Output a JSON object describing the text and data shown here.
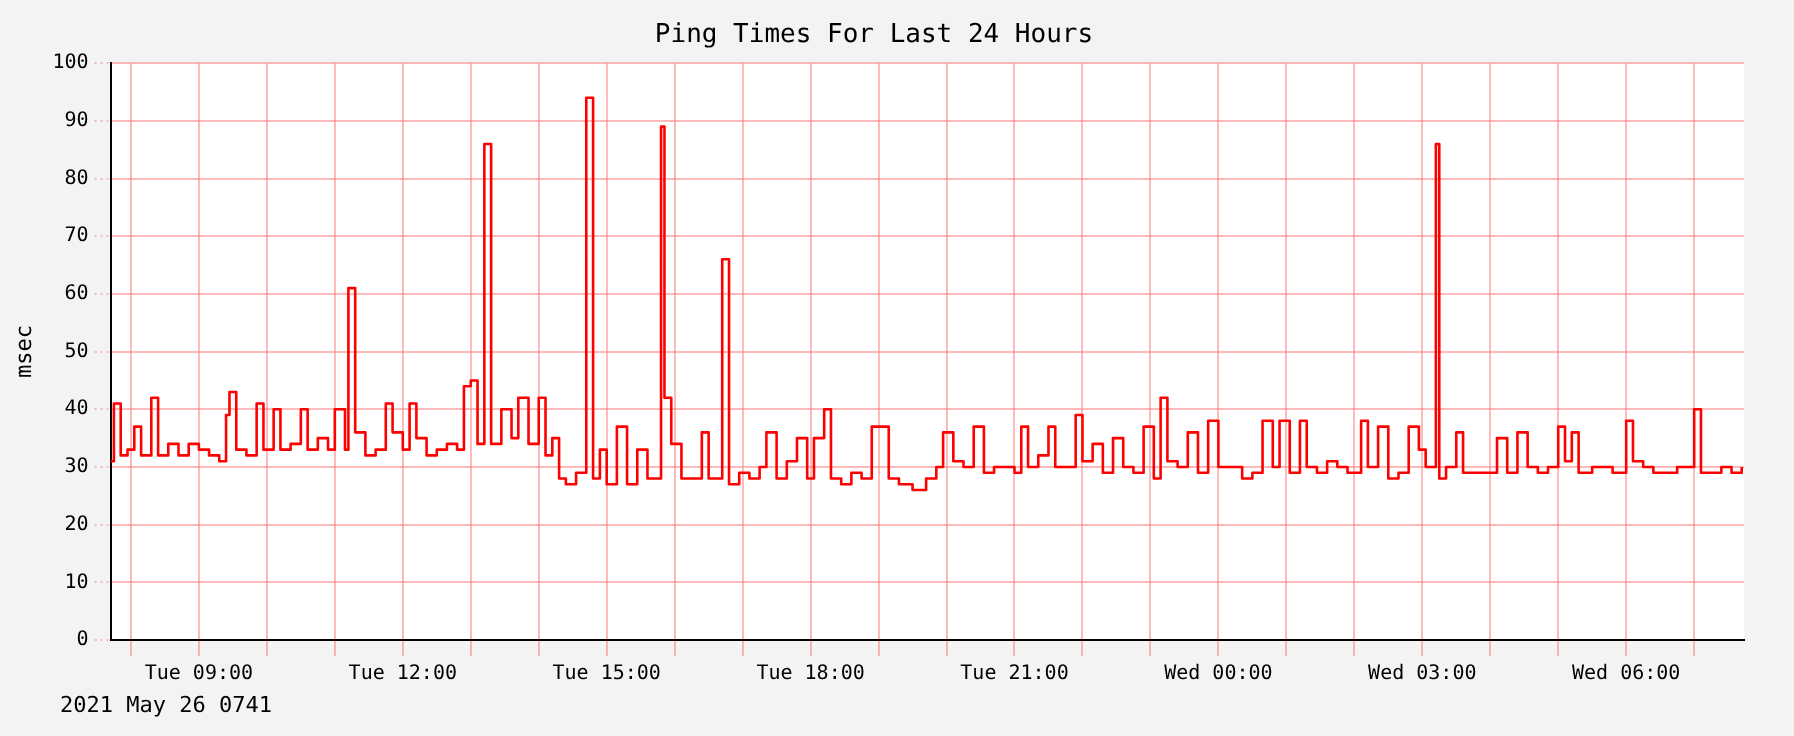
{
  "chart_data": {
    "type": "step",
    "title": "Ping Times For Last 24 Hours",
    "ylabel": "msec",
    "annotations": [
      "2021 May 26 0741"
    ],
    "xlim": [
      "2021-05-25T07:42",
      "2021-05-26T07:44"
    ],
    "xticks": [
      {
        "value": "2021-05-25T08:00",
        "label": null
      },
      {
        "value": "2021-05-25T09:00",
        "label": "Tue 09:00"
      },
      {
        "value": "2021-05-25T10:00",
        "label": null
      },
      {
        "value": "2021-05-25T11:00",
        "label": null
      },
      {
        "value": "2021-05-25T12:00",
        "label": "Tue 12:00"
      },
      {
        "value": "2021-05-25T13:00",
        "label": null
      },
      {
        "value": "2021-05-25T14:00",
        "label": null
      },
      {
        "value": "2021-05-25T15:00",
        "label": "Tue 15:00"
      },
      {
        "value": "2021-05-25T16:00",
        "label": null
      },
      {
        "value": "2021-05-25T17:00",
        "label": null
      },
      {
        "value": "2021-05-25T18:00",
        "label": "Tue 18:00"
      },
      {
        "value": "2021-05-25T19:00",
        "label": null
      },
      {
        "value": "2021-05-25T20:00",
        "label": null
      },
      {
        "value": "2021-05-25T21:00",
        "label": "Tue 21:00"
      },
      {
        "value": "2021-05-25T22:00",
        "label": null
      },
      {
        "value": "2021-05-25T23:00",
        "label": null
      },
      {
        "value": "2021-05-26T00:00",
        "label": "Wed 00:00"
      },
      {
        "value": "2021-05-26T01:00",
        "label": null
      },
      {
        "value": "2021-05-26T02:00",
        "label": null
      },
      {
        "value": "2021-05-26T03:00",
        "label": "Wed 03:00"
      },
      {
        "value": "2021-05-26T04:00",
        "label": null
      },
      {
        "value": "2021-05-26T05:00",
        "label": null
      },
      {
        "value": "2021-05-26T06:00",
        "label": "Wed 06:00"
      },
      {
        "value": "2021-05-26T07:00",
        "label": null
      }
    ],
    "ylim": [
      0,
      100
    ],
    "yticks": [
      0,
      10,
      20,
      30,
      40,
      50,
      60,
      70,
      80,
      90,
      100
    ],
    "grid": true,
    "marker": "none",
    "series": [
      {
        "color": "#ff0000",
        "x": [
          "2021-05-25T07:42",
          "2021-05-25T07:45",
          "2021-05-25T07:51",
          "2021-05-25T07:57",
          "2021-05-25T08:03",
          "2021-05-25T08:09",
          "2021-05-25T08:18",
          "2021-05-25T08:24",
          "2021-05-25T08:33",
          "2021-05-25T08:42",
          "2021-05-25T08:51",
          "2021-05-25T09:00",
          "2021-05-25T09:09",
          "2021-05-25T09:18",
          "2021-05-25T09:24",
          "2021-05-25T09:27",
          "2021-05-25T09:33",
          "2021-05-25T09:42",
          "2021-05-25T09:51",
          "2021-05-25T09:57",
          "2021-05-25T10:06",
          "2021-05-25T10:12",
          "2021-05-25T10:21",
          "2021-05-25T10:30",
          "2021-05-25T10:36",
          "2021-05-25T10:45",
          "2021-05-25T10:54",
          "2021-05-25T11:00",
          "2021-05-25T11:09",
          "2021-05-25T11:12",
          "2021-05-25T11:18",
          "2021-05-25T11:27",
          "2021-05-25T11:36",
          "2021-05-25T11:45",
          "2021-05-25T11:51",
          "2021-05-25T12:00",
          "2021-05-25T12:06",
          "2021-05-25T12:12",
          "2021-05-25T12:21",
          "2021-05-25T12:30",
          "2021-05-25T12:39",
          "2021-05-25T12:48",
          "2021-05-25T12:54",
          "2021-05-25T13:00",
          "2021-05-25T13:06",
          "2021-05-25T13:12",
          "2021-05-25T13:18",
          "2021-05-25T13:27",
          "2021-05-25T13:36",
          "2021-05-25T13:42",
          "2021-05-25T13:51",
          "2021-05-25T14:00",
          "2021-05-25T14:06",
          "2021-05-25T14:12",
          "2021-05-25T14:18",
          "2021-05-25T14:24",
          "2021-05-25T14:33",
          "2021-05-25T14:42",
          "2021-05-25T14:48",
          "2021-05-25T14:54",
          "2021-05-25T15:00",
          "2021-05-25T15:09",
          "2021-05-25T15:18",
          "2021-05-25T15:27",
          "2021-05-25T15:36",
          "2021-05-25T15:42",
          "2021-05-25T15:48",
          "2021-05-25T15:51",
          "2021-05-25T15:57",
          "2021-05-25T16:06",
          "2021-05-25T16:15",
          "2021-05-25T16:24",
          "2021-05-25T16:30",
          "2021-05-25T16:42",
          "2021-05-25T16:48",
          "2021-05-25T16:57",
          "2021-05-25T17:06",
          "2021-05-25T17:15",
          "2021-05-25T17:21",
          "2021-05-25T17:30",
          "2021-05-25T17:39",
          "2021-05-25T17:48",
          "2021-05-25T17:57",
          "2021-05-25T18:03",
          "2021-05-25T18:12",
          "2021-05-25T18:18",
          "2021-05-25T18:27",
          "2021-05-25T18:36",
          "2021-05-25T18:45",
          "2021-05-25T18:54",
          "2021-05-25T19:00",
          "2021-05-25T19:09",
          "2021-05-25T19:18",
          "2021-05-25T19:30",
          "2021-05-25T19:42",
          "2021-05-25T19:51",
          "2021-05-25T19:57",
          "2021-05-25T20:06",
          "2021-05-25T20:15",
          "2021-05-25T20:24",
          "2021-05-25T20:33",
          "2021-05-25T20:42",
          "2021-05-25T20:51",
          "2021-05-25T21:00",
          "2021-05-25T21:06",
          "2021-05-25T21:12",
          "2021-05-25T21:21",
          "2021-05-25T21:30",
          "2021-05-25T21:36",
          "2021-05-25T21:45",
          "2021-05-25T21:54",
          "2021-05-25T22:00",
          "2021-05-25T22:09",
          "2021-05-25T22:18",
          "2021-05-25T22:27",
          "2021-05-25T22:36",
          "2021-05-25T22:45",
          "2021-05-25T22:54",
          "2021-05-25T23:03",
          "2021-05-25T23:09",
          "2021-05-25T23:15",
          "2021-05-25T23:24",
          "2021-05-25T23:33",
          "2021-05-25T23:42",
          "2021-05-25T23:51",
          "2021-05-26T00:00",
          "2021-05-26T00:12",
          "2021-05-26T00:21",
          "2021-05-26T00:30",
          "2021-05-26T00:39",
          "2021-05-26T00:48",
          "2021-05-26T00:54",
          "2021-05-26T01:03",
          "2021-05-26T01:12",
          "2021-05-26T01:18",
          "2021-05-26T01:27",
          "2021-05-26T01:36",
          "2021-05-26T01:45",
          "2021-05-26T01:54",
          "2021-05-26T02:06",
          "2021-05-26T02:12",
          "2021-05-26T02:21",
          "2021-05-26T02:30",
          "2021-05-26T02:39",
          "2021-05-26T02:48",
          "2021-05-26T02:57",
          "2021-05-26T03:03",
          "2021-05-26T03:12",
          "2021-05-26T03:15",
          "2021-05-26T03:21",
          "2021-05-26T03:30",
          "2021-05-26T03:36",
          "2021-05-26T03:48",
          "2021-05-26T03:57",
          "2021-05-26T04:06",
          "2021-05-26T04:15",
          "2021-05-26T04:24",
          "2021-05-26T04:33",
          "2021-05-26T04:42",
          "2021-05-26T04:51",
          "2021-05-26T05:00",
          "2021-05-26T05:06",
          "2021-05-26T05:12",
          "2021-05-26T05:18",
          "2021-05-26T05:30",
          "2021-05-26T05:39",
          "2021-05-26T05:48",
          "2021-05-26T06:00",
          "2021-05-26T06:06",
          "2021-05-26T06:15",
          "2021-05-26T06:24",
          "2021-05-26T06:36",
          "2021-05-26T06:45",
          "2021-05-26T06:54",
          "2021-05-26T07:00",
          "2021-05-26T07:06",
          "2021-05-26T07:15",
          "2021-05-26T07:24",
          "2021-05-26T07:33",
          "2021-05-26T07:42"
        ],
        "values": [
          31,
          41,
          32,
          33,
          37,
          32,
          42,
          32,
          34,
          32,
          34,
          33,
          32,
          31,
          39,
          43,
          33,
          32,
          41,
          33,
          40,
          33,
          34,
          40,
          33,
          35,
          33,
          40,
          33,
          61,
          36,
          32,
          33,
          41,
          36,
          33,
          41,
          35,
          32,
          33,
          34,
          33,
          44,
          45,
          34,
          86,
          34,
          40,
          35,
          42,
          34,
          42,
          32,
          35,
          28,
          27,
          29,
          94,
          28,
          33,
          27,
          37,
          27,
          33,
          28,
          28,
          89,
          42,
          34,
          28,
          28,
          36,
          28,
          66,
          27,
          29,
          28,
          30,
          36,
          28,
          31,
          35,
          28,
          35,
          40,
          28,
          27,
          29,
          28,
          37,
          37,
          28,
          27,
          26,
          28,
          30,
          36,
          31,
          30,
          37,
          29,
          30,
          30,
          29,
          37,
          30,
          32,
          37,
          30,
          30,
          39,
          31,
          34,
          29,
          35,
          30,
          29,
          37,
          28,
          42,
          31,
          30,
          36,
          29,
          38,
          30,
          30,
          28,
          29,
          38,
          30,
          38,
          29,
          38,
          30,
          29,
          31,
          30,
          29,
          38,
          30,
          37,
          28,
          29,
          37,
          33,
          30,
          86,
          28,
          30,
          36,
          29,
          29,
          29,
          35,
          29,
          36,
          30,
          29,
          30,
          37,
          31,
          36,
          29,
          30,
          30,
          29,
          38,
          31,
          30,
          29,
          29,
          30,
          30,
          40,
          29,
          29,
          30,
          29,
          30
        ]
      }
    ]
  }
}
